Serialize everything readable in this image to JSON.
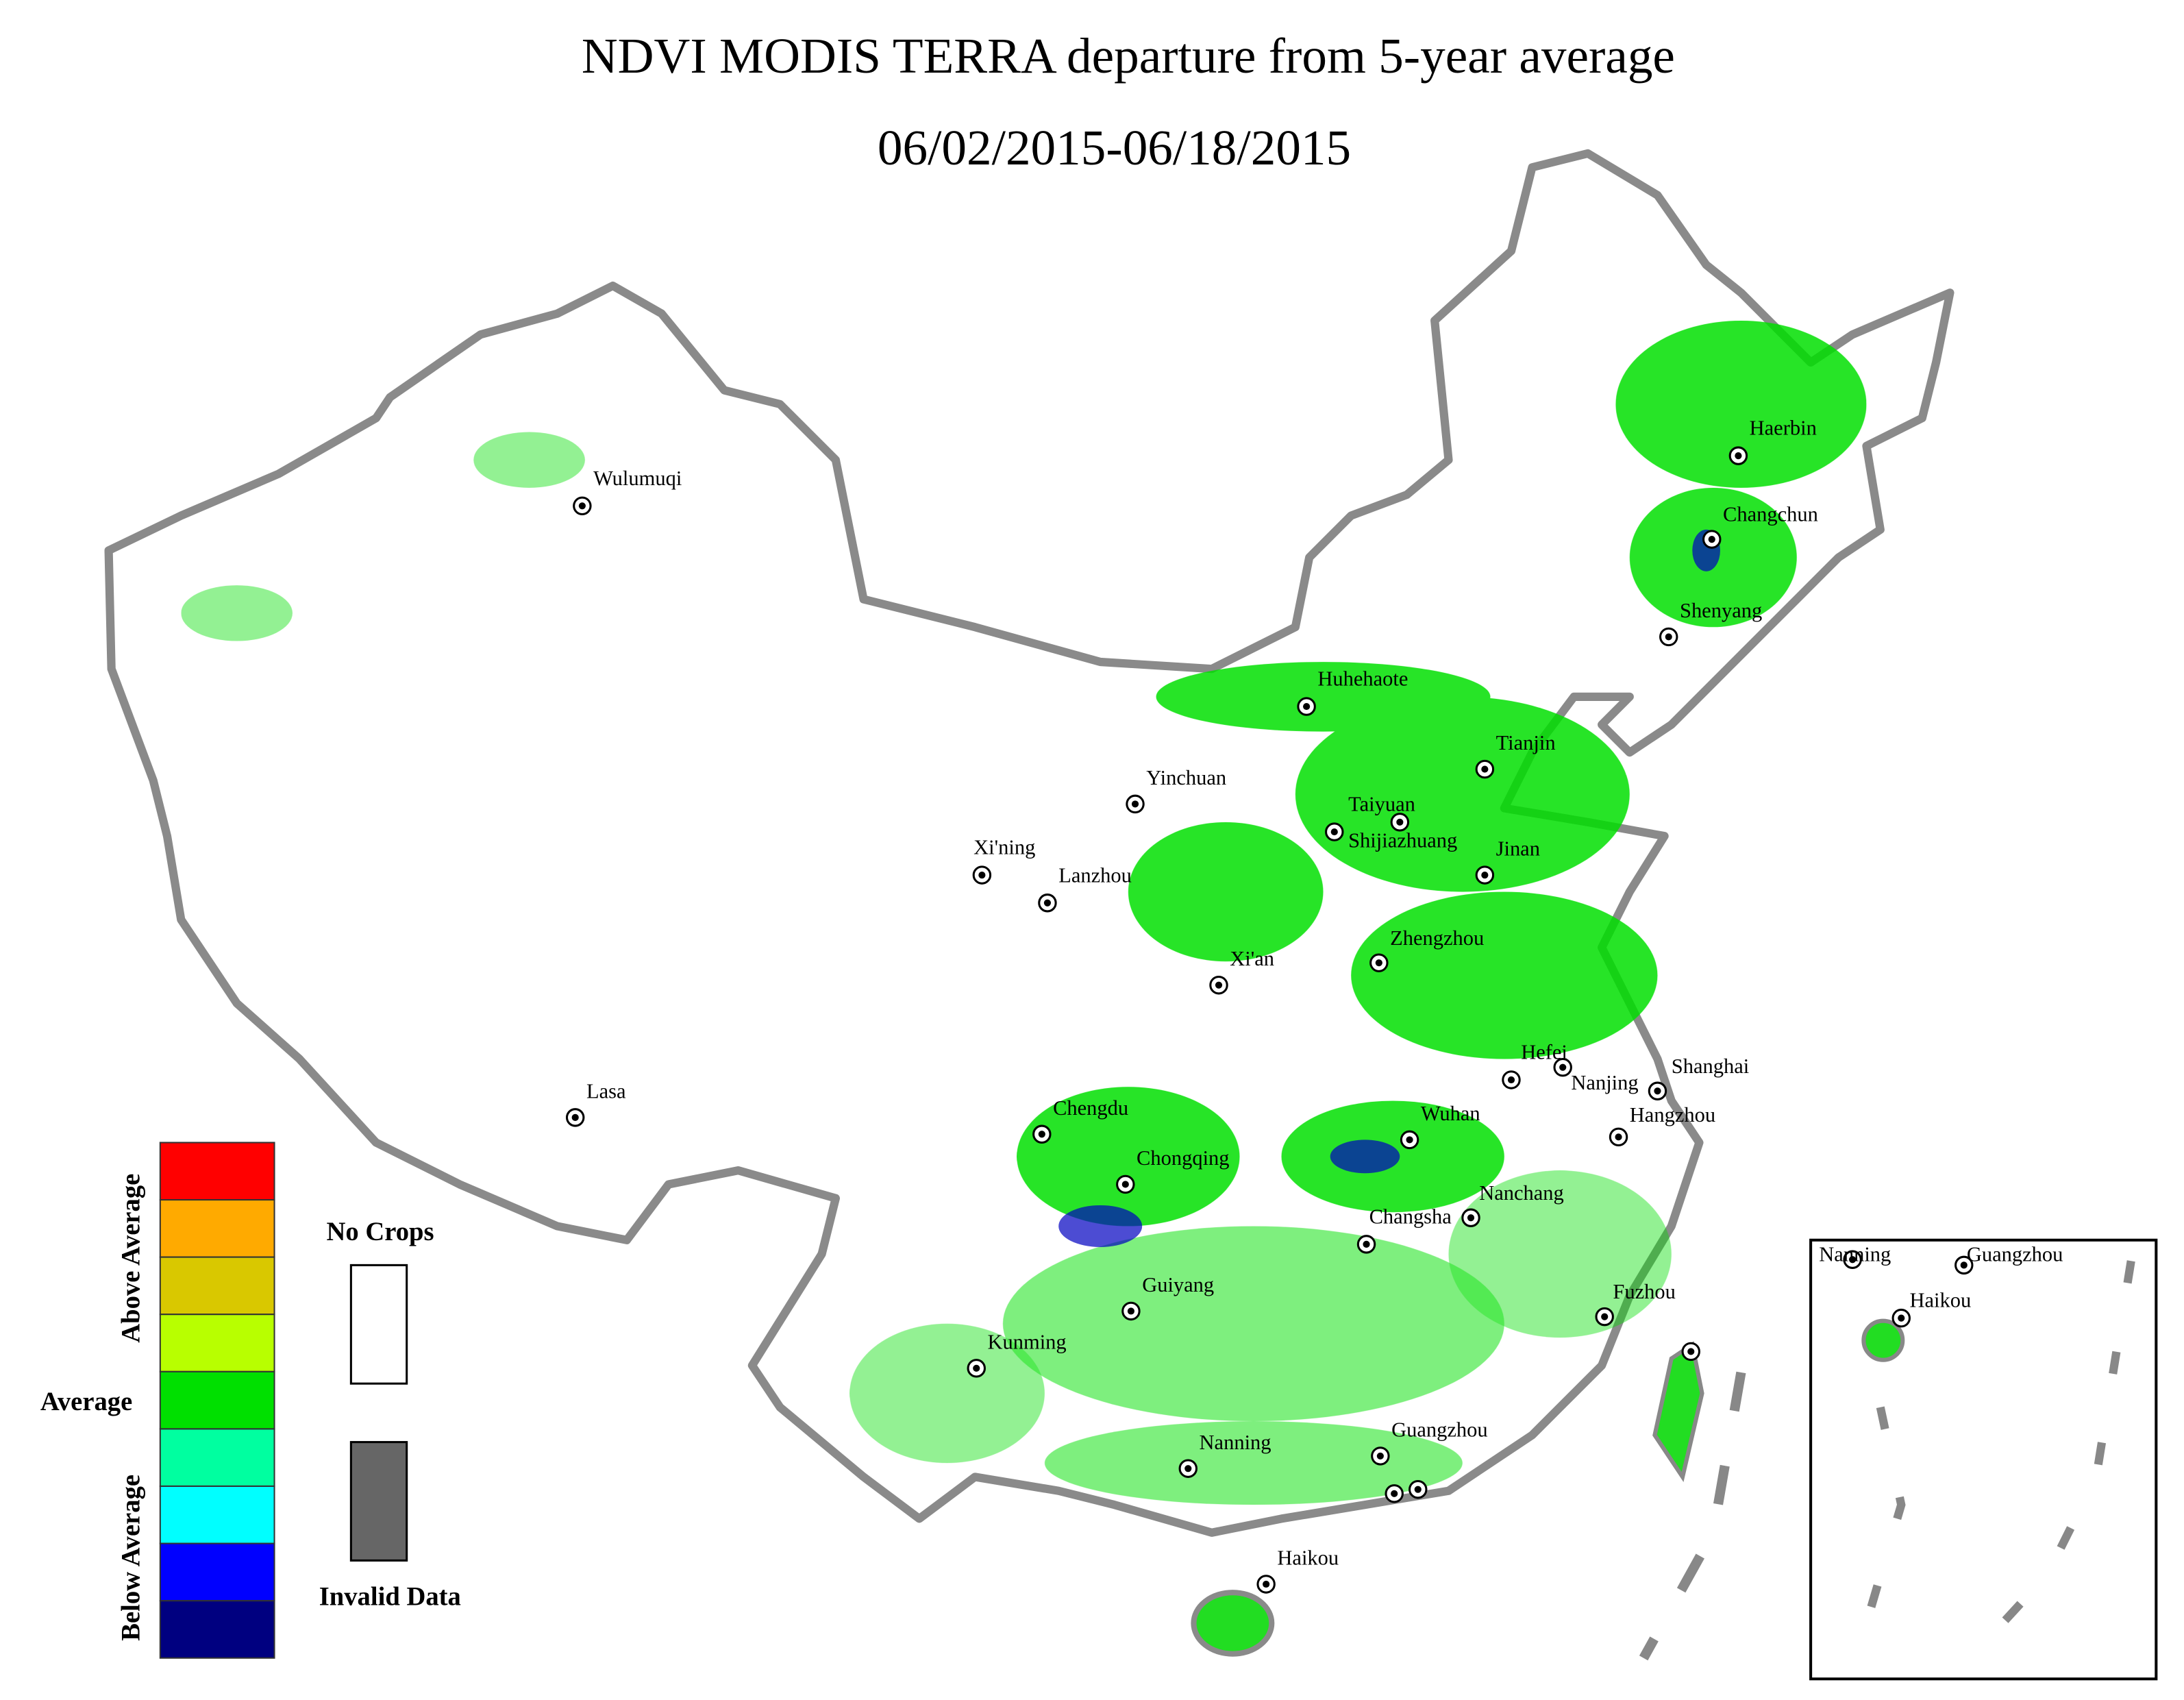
{
  "header": {
    "title": "NDVI MODIS TERRA departure from 5-year average",
    "subtitle": "06/02/2015-06/18/2015"
  },
  "map": {
    "cities": [
      "Wulumuqi",
      "Haerbin",
      "Changchun",
      "Shenyang",
      "Huhehaote",
      "Tianjin",
      "Yinchuan",
      "Taiyuan",
      "Shijiazhuang",
      "Jinan",
      "Xi'ning",
      "Lanzhou",
      "Zhengzhou",
      "Xi'an",
      "Hefei",
      "Nanjing",
      "Shanghai",
      "Hangzhou",
      "Wuhan",
      "Lasa",
      "Chengdu",
      "Chongqing",
      "Nanchang",
      "Changsha",
      "Fuzhou",
      "Guiyang",
      "Kunming",
      "Nanning",
      "Guangzhou",
      "Haikou"
    ],
    "inset_cities": [
      "Nanning",
      "Guangzhou",
      "Haikou"
    ]
  },
  "legend": {
    "scale_labels": [
      "Above Average",
      "Average",
      "Below Average"
    ],
    "scale_colors": [
      "#ff0000",
      "#ffaa00",
      "#d9c800",
      "#b8ff00",
      "#00e000",
      "#00ffa0",
      "#00ffff",
      "#0000ff",
      "#000080"
    ],
    "no_crops": "No Crops",
    "invalid_data": "Invalid Data",
    "no_crops_color": "#ffffff",
    "invalid_color": "#666666"
  }
}
